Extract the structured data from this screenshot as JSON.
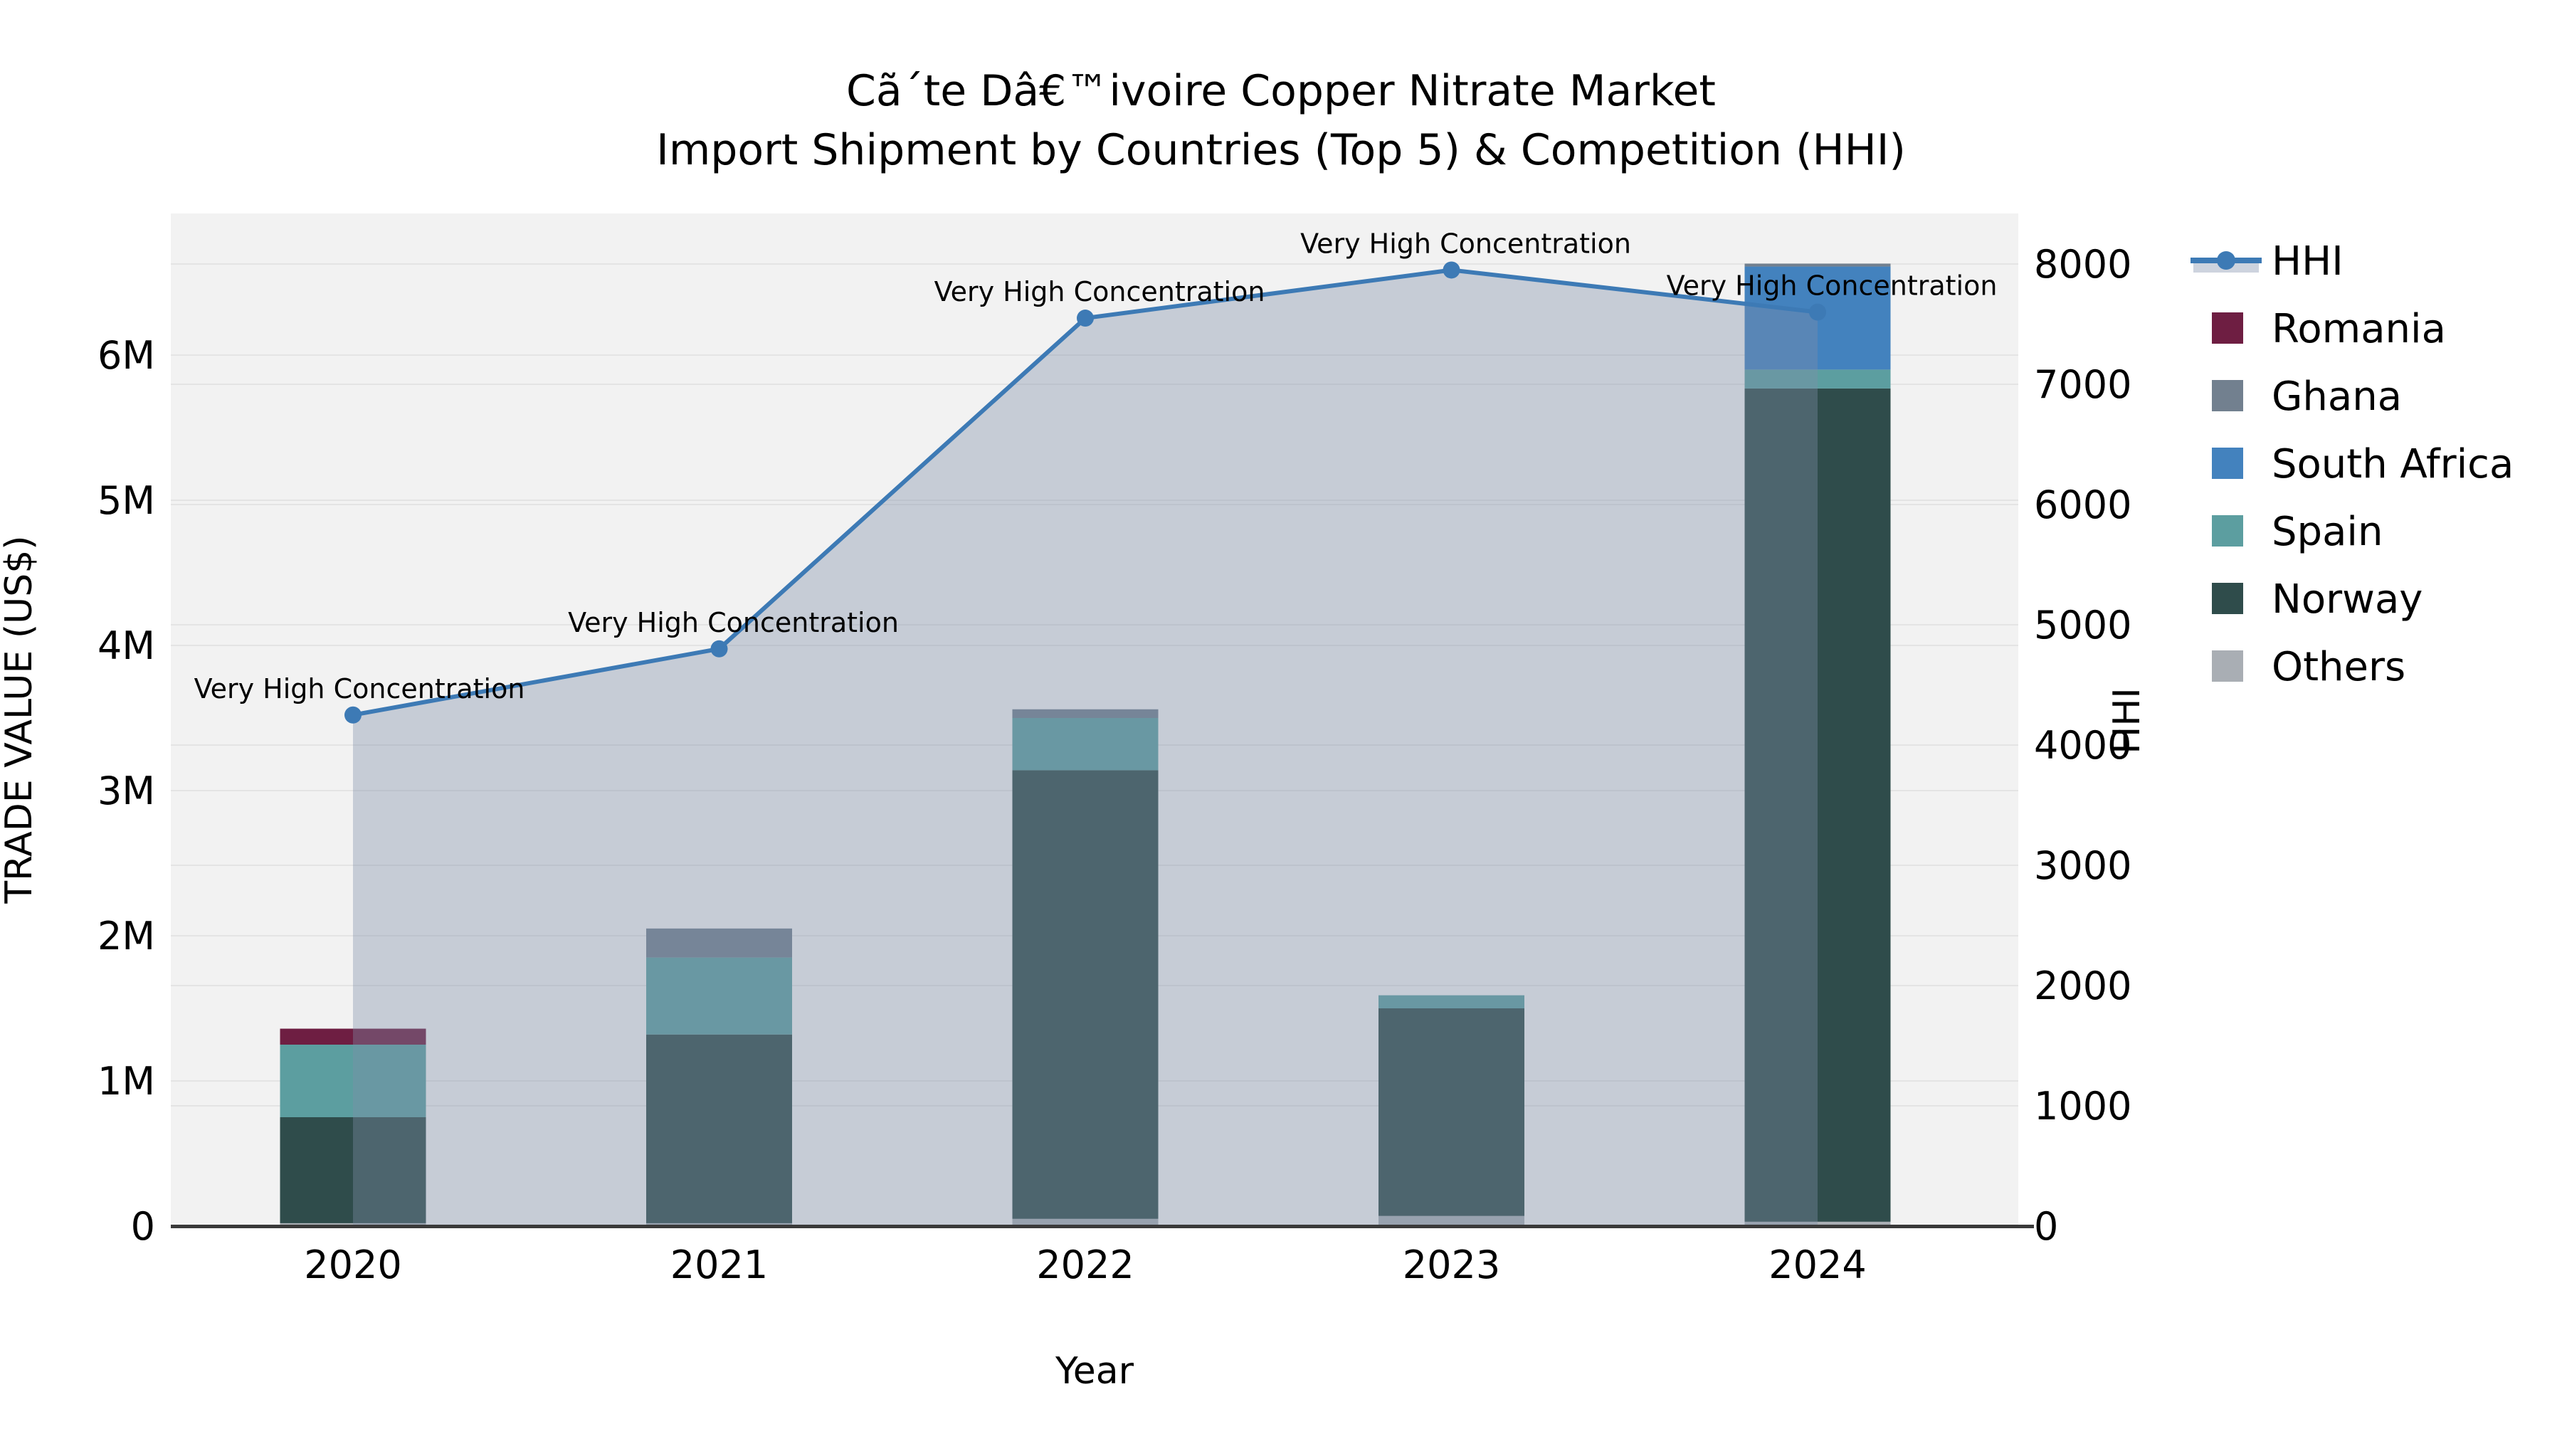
{
  "title": {
    "line1": "Cã´te Dâ€™ivoire Copper Nitrate Market",
    "line2": "Import Shipment by Countries (Top 5) & Competition (HHI)"
  },
  "axes": {
    "x_label": "Year",
    "y_left_label": "TRADE VALUE (US$)",
    "y_right_label": "HHI",
    "x_tick_labels": [
      "2020",
      "2021",
      "2022",
      "2023",
      "2024"
    ],
    "y_left_tick_labels": [
      "0",
      "1M",
      "2M",
      "3M",
      "4M",
      "5M",
      "6M"
    ],
    "y_left_tick_values_musd": [
      0,
      1,
      2,
      3,
      4,
      5,
      6
    ],
    "y_right_tick_labels": [
      "0",
      "1000",
      "2000",
      "3000",
      "4000",
      "5000",
      "6000",
      "7000",
      "8000"
    ],
    "y_right_tick_values": [
      0,
      1000,
      2000,
      3000,
      4000,
      5000,
      6000,
      7000,
      8000
    ]
  },
  "legend": {
    "items": [
      {
        "label": "HHI",
        "type": "line-with-area",
        "line_color": "#3D7AB5",
        "area_color": "#CDD3DE"
      },
      {
        "label": "Romania",
        "type": "swatch",
        "color": "#6E1E42"
      },
      {
        "label": "Ghana",
        "type": "swatch",
        "color": "#72808F"
      },
      {
        "label": "South Africa",
        "type": "swatch",
        "color": "#4382BE"
      },
      {
        "label": "Spain",
        "type": "swatch",
        "color": "#5C9EA0"
      },
      {
        "label": "Norway",
        "type": "swatch",
        "color": "#2F4C4B"
      },
      {
        "label": "Others",
        "type": "swatch",
        "color": "#A9AEB4"
      }
    ]
  },
  "chart_data": {
    "type": "bar",
    "subtype": "stacked bars (left axis) + line with area fill (right axis)",
    "categories": [
      "2020",
      "2021",
      "2022",
      "2023",
      "2024"
    ],
    "bar_unit": "trade value in million US$",
    "bar_stack_order_bottom_to_top": [
      "Others",
      "Norway",
      "Spain",
      "South Africa",
      "Ghana",
      "Romania"
    ],
    "bar_series": [
      {
        "name": "Others",
        "color": "#A9AEB4",
        "values": [
          0.02,
          0.02,
          0.05,
          0.07,
          0.03
        ]
      },
      {
        "name": "Norway",
        "color": "#2F4C4B",
        "values": [
          0.73,
          1.3,
          3.09,
          1.43,
          5.74
        ]
      },
      {
        "name": "Spain",
        "color": "#5C9EA0",
        "values": [
          0.5,
          0.53,
          0.36,
          0.09,
          0.13
        ]
      },
      {
        "name": "South Africa",
        "color": "#4382BE",
        "values": [
          0.0,
          0.0,
          0.0,
          0.0,
          0.71
        ]
      },
      {
        "name": "Ghana",
        "color": "#72808F",
        "values": [
          0.0,
          0.2,
          0.06,
          0.0,
          0.02
        ]
      },
      {
        "name": "Romania",
        "color": "#6E1E42",
        "values": [
          0.11,
          0.0,
          0.0,
          0.0,
          0.0
        ]
      }
    ],
    "bar_totals_musd": [
      1.36,
      2.05,
      3.56,
      1.59,
      6.63
    ],
    "line_series": {
      "name": "HHI",
      "axis": "right",
      "color": "#3D7AB5",
      "area_fill_color": "rgba(127,143,169,0.38)",
      "values": [
        4250,
        4800,
        7550,
        7950,
        7600
      ]
    },
    "annotations": [
      "Very High Concentration",
      "Very High Concentration",
      "Very High Concentration",
      "Very High Concentration",
      "Very High Concentration"
    ],
    "title": "Cã´te Dâ€™ivoire Copper Nitrate Market — Import Shipment by Countries (Top 5) & Competition (HHI)",
    "xlabel": "Year",
    "ylabel_left": "TRADE VALUE (US$)",
    "ylabel_right": "HHI",
    "ylim_left_musd": [
      0,
      6.97
    ],
    "ylim_right": [
      0,
      8420
    ],
    "grid": "horizontal gridlines for both left (1M) and right (1000) axis ticks",
    "legend_position": "outside right"
  }
}
